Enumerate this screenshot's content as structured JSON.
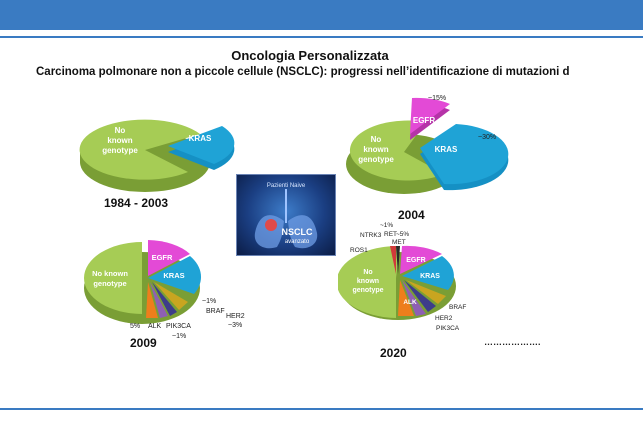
{
  "header": {
    "title": "Oncologia Personalizzata",
    "subtitle": "Carcinoma polmonare non a piccole cellule (NSCLC): progressi nell’identificazione di mutazioni driver"
  },
  "center_image": {
    "top_label": "Pazienti Naive",
    "main_label": "NSCLC",
    "sub_label": "avanzato"
  },
  "panels": {
    "p1984": {
      "year": "1984 - 2003",
      "no_known": [
        "No",
        "known",
        "genotype"
      ],
      "kras": "KRAS"
    },
    "p2004": {
      "year": "2004",
      "no_known": [
        "No",
        "known",
        "genotype"
      ],
      "egfr": "EGFR",
      "kras": "KRAS",
      "egfr_pct": "~15%",
      "kras_pct": "~30%"
    },
    "p2009": {
      "year": "2009",
      "no_known": [
        "No known",
        "genotype"
      ],
      "egfr": "EGFR",
      "kras": "KRAS",
      "alk": "ALK",
      "pik3ca": "PIK3CA",
      "braf": "BRAF",
      "her2": "HER2",
      "pct_braf": "~1%",
      "pct_her2": "~3%",
      "pct_alk": "5%",
      "pct_pik3ca": "~1%"
    },
    "p2020": {
      "year": "2020",
      "no_known": [
        "No",
        "known",
        "genotype"
      ],
      "egfr": "EGFR",
      "kras": "KRAS",
      "alk": "ALK",
      "braf": "BRAF",
      "her2": "HER2",
      "pik3ca": "PIK3CA",
      "ros1": "ROS1",
      "ntrk3": "NTRK3",
      "ret": "RET",
      "met": "MET",
      "pct_ntrk": "~1%",
      "pct_ret": "~5%",
      "dots": "………………."
    }
  },
  "colors": {
    "bar": "#3a7bc2",
    "no_known": "#a6cc55",
    "kras": "#1fa3d6",
    "egfr": "#e34ad6",
    "alk": "#ee7e1c",
    "purple": "#8e5fb4"
  }
}
